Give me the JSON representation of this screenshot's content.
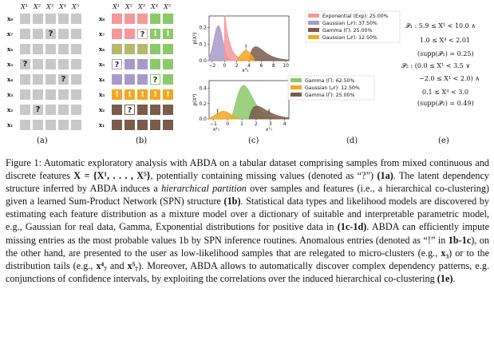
{
  "figure": {
    "panel_a": {
      "label": "(a)",
      "col_headers": [
        "X¹",
        "X²",
        "X³",
        "X⁴",
        "X⁵"
      ],
      "row_labels": [
        "x₈",
        "x₇",
        "x₆",
        "x₅",
        "x₄",
        "x₃",
        "x₂",
        "x₁"
      ],
      "missing_cells": [
        {
          "row": 1,
          "col": 2,
          "mark": "?"
        },
        {
          "row": 3,
          "col": 0,
          "mark": "?"
        },
        {
          "row": 4,
          "col": 3,
          "mark": "?"
        },
        {
          "row": 6,
          "col": 1,
          "mark": "?"
        }
      ],
      "cell_color": "#c8c8c8"
    },
    "panel_b": {
      "label": "(b)",
      "col_headers": [
        "X¹",
        "X²",
        "X³",
        "X⁴",
        "X⁵"
      ],
      "row_labels": [
        "x₈",
        "x₇",
        "x₆",
        "x₅",
        "x₄",
        "x₃",
        "x₂",
        "x₁"
      ],
      "colors": {
        "pink": "#f4989c",
        "green": "#8cc96a",
        "lightgreen": "#9fd07f",
        "purple": "#a89ac8",
        "olive": "#b6b86a",
        "orange": "#f5a623",
        "brown": "#7b5b4c",
        "gray": "#c8c8c8"
      },
      "cells": [
        [
          "pink",
          "pink",
          "pink",
          "green",
          "green"
        ],
        [
          "pink",
          "pink",
          "pink",
          "green",
          "green"
        ],
        [
          "olive",
          "olive",
          "olive",
          "green",
          "green"
        ],
        [
          "purple",
          "purple",
          "purple",
          "green",
          "green"
        ],
        [
          "purple",
          "purple",
          "purple",
          "green",
          "green"
        ],
        [
          "orange",
          "orange",
          "orange",
          "orange",
          "orange"
        ],
        [
          "brown",
          "brown",
          "brown",
          "brown",
          "brown"
        ],
        [
          "brown",
          "brown",
          "brown",
          "brown",
          "brown"
        ]
      ],
      "marks": [
        {
          "row": 1,
          "col": 2,
          "mark": "?"
        },
        {
          "row": 1,
          "col": 3,
          "mark": "!"
        },
        {
          "row": 1,
          "col": 4,
          "mark": "!"
        },
        {
          "row": 3,
          "col": 0,
          "mark": "?"
        },
        {
          "row": 4,
          "col": 3,
          "mark": "?"
        },
        {
          "row": 5,
          "col": 0,
          "mark": "!"
        },
        {
          "row": 5,
          "col": 1,
          "mark": "!"
        },
        {
          "row": 5,
          "col": 2,
          "mark": "!"
        },
        {
          "row": 5,
          "col": 3,
          "mark": "!"
        },
        {
          "row": 5,
          "col": 4,
          "mark": "!"
        },
        {
          "row": 6,
          "col": 1,
          "mark": "?"
        }
      ]
    },
    "panel_c": {
      "label": "(c)",
      "top": {
        "ylabel": "p(X¹)",
        "yticks": [
          "0.0",
          "0.1",
          "0.2"
        ],
        "xticks": [
          "−2",
          "0",
          "2",
          "4",
          "6",
          "8",
          "10"
        ],
        "annotation": "x³₁",
        "legend": [
          {
            "name": "Exponential (Exp): 25.00%",
            "color": "#f4989c"
          },
          {
            "name": "Gaussian (𝒩): 37.50%",
            "color": "#a89ac8"
          },
          {
            "name": "Gamma (Γ): 25.00%",
            "color": "#7b5b4c"
          },
          {
            "name": "Gaussian (𝒩): 12.50%",
            "color": "#f5a623"
          }
        ]
      },
      "bottom": {
        "ylabel": "p(X⁴)",
        "yticks": [
          "0.0",
          "0.2",
          "0.4"
        ],
        "xticks": [
          "−1",
          "0",
          "1",
          "2",
          "3",
          "4"
        ],
        "annotations": [
          "x⁴₇",
          "x⁵₇"
        ],
        "legend": [
          {
            "name": "Gamma (Γ): 62.50%",
            "color": "#8cc96a"
          },
          {
            "name": "Gaussian (𝒩): 12.50%",
            "color": "#f5a623"
          },
          {
            "name": "Gamma (Γ): 25.00%",
            "color": "#7b5b4c"
          }
        ]
      }
    },
    "panel_d": {
      "label": "(d)"
    },
    "panel_e": {
      "label": "(e)",
      "lines": [
        "𝒫₁ : 5.9 ≤ X¹ < 10.0 ∧",
        "1.0 ≤ X⁴ < 2.01",
        "(supp(𝒫₁) = 0.25)",
        "𝒫₂ : (0.0 ≤ X¹ < 3.5 ∨",
        "−2.0 ≤ X¹ < 2.0) ∧",
        "0.1 ≤ X⁴ < 3.0",
        "(supp(𝒫₂) = 0.49)"
      ]
    }
  },
  "caption": {
    "p1": "Figure 1: Automatic exploratory analysis with ABDA on a tabular dataset comprising samples from mixed continuous and discrete features ",
    "X": "X = {X¹, . . . , X⁵}",
    "p2": ", potentially containing missing values (denoted as “?”) ",
    "r1a": "(1a)",
    "p3": ". The latent dependency structure inferred by ABDA induces a ",
    "hier": "hierarchical partition",
    "p4": " over samples and features (i.e., a hierarchical co-clustering) given a learned Sum-Product Network (SPN) structure ",
    "r1b": "(1b)",
    "p5": ". Statistical data types and likelihood models are discovered by estimating each feature distribution as a mixture model over a dictionary of suitable and interpretable parametric model, e.g., Gaussian for real data, Gamma, Exponential distributions for positive data in ",
    "r1cd": "(1c-1d)",
    "p6": ". ABDA can efficiently impute missing entries as the most probable values 1b by SPN inference routines. Anomalous entries (denoted as “!” in ",
    "r1b1c": "1b-1c",
    "p7": "), on the other hand, are presented to the user as low-likelihood samples that are relegated to micro-clusters (e.g., ",
    "x3": "x₃",
    "p8": ") or to the distribution tails (e.g., ",
    "x47": "x⁴₇",
    "and": " and ",
    "x57": "x⁵₇",
    "p9": "). Moreover, ABDA allows to automatically discover complex dependency patterns, e.g. conjunctions of confidence intervals, by exploiting the correlations over the induced hierarchical co-clustering ",
    "r1e": "(1e)",
    "p10": "."
  }
}
